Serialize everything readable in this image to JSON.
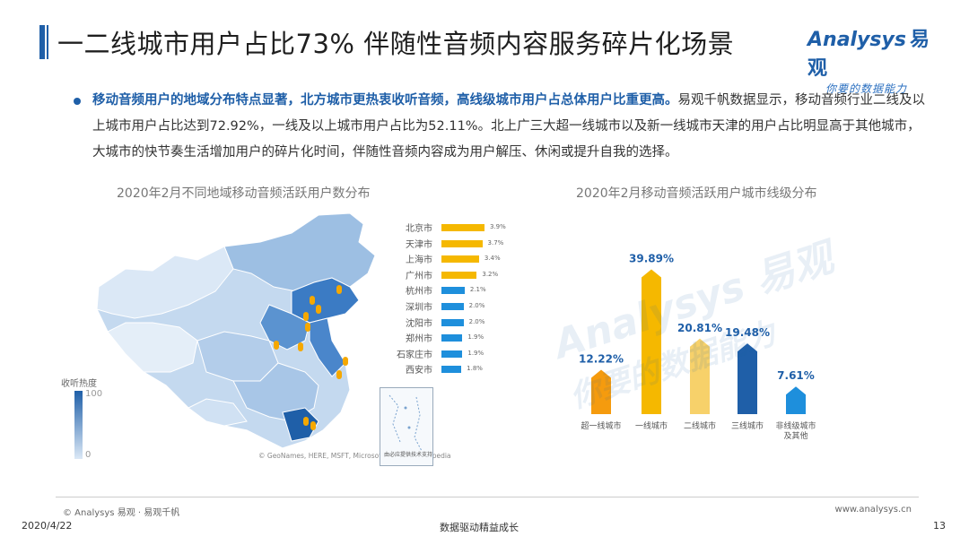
{
  "header": {
    "title": "一二线城市用户占比73% 伴随性音频内容服务碎片化场景",
    "logo_brand": "nalysys",
    "logo_brand_prefix": "A",
    "logo_cn": "易观",
    "logo_slogan": "你要的数据能力"
  },
  "body": {
    "highlight": "移动音频用户的地域分布特点显著，北方城市更热衷收听音频，高线级城市用户占总体用户比重更高。",
    "text": "易观千帆数据显示，移动音频行业二线及以上城市用户占比达到72.92%，一线及以上城市用户占比为52.11%。北上广三大超一线城市以及新一线城市天津的用户占比明显高于其他城市，大城市的快节奏生活增加用户的碎片化时间，伴随性音频内容成为用户解压、休闲或提升自我的选择。"
  },
  "map_chart": {
    "title": "2020年2月不同地域移动音频活跃用户数分布",
    "legend_name": "收听热度",
    "legend_max": "100",
    "legend_min": "0",
    "copyright": "© GeoNames, HERE, MSFT, Microsoft, Navinfo, Wikipedia",
    "inset_label": "由必应提供技术支持",
    "colors": {
      "top4": "#f5b800",
      "others": "#1e8fdc"
    }
  },
  "chart_data": [
    {
      "type": "bar",
      "orientation": "horizontal",
      "categories": [
        "北京市",
        "天津市",
        "上海市",
        "广州市",
        "杭州市",
        "深圳市",
        "沈阳市",
        "郑州市",
        "石家庄市",
        "西安市"
      ],
      "values": [
        3.9,
        3.7,
        3.4,
        3.2,
        2.1,
        2.0,
        2.0,
        1.9,
        1.9,
        1.8
      ],
      "value_labels": [
        "3.9%",
        "3.7%",
        "3.4%",
        "3.2%",
        "2.1%",
        "2.0%",
        "2.0%",
        "1.9%",
        "1.9%",
        "1.8%"
      ],
      "unit": "%"
    },
    {
      "type": "bar",
      "title": "2020年2月移动音频活跃用户城市线级分布",
      "categories": [
        "超一线城市",
        "一线城市",
        "二线城市",
        "三线城市",
        "非线级城市及其他"
      ],
      "category_lines": [
        [
          "超一线城市"
        ],
        [
          "一线城市"
        ],
        [
          "二线城市"
        ],
        [
          "三线城市"
        ],
        [
          "非线级城市",
          "及其他"
        ]
      ],
      "values": [
        12.22,
        39.89,
        20.81,
        19.48,
        7.61
      ],
      "value_labels": [
        "12.22%",
        "39.89%",
        "20.81%",
        "19.48%",
        "7.61%"
      ],
      "colors": [
        "#f59b0e",
        "#f5b800",
        "#f7d16a",
        "#1f5fa8",
        "#1e8fdc"
      ],
      "ylim": [
        0,
        42
      ],
      "label_color": "#1f5fa8"
    }
  ],
  "footer": {
    "source": "© Analysys 易观 · 易观千帆",
    "website": "www.analysys.cn",
    "date": "2020/4/22",
    "slogan": "数据驱动精益成长",
    "page": "13"
  }
}
